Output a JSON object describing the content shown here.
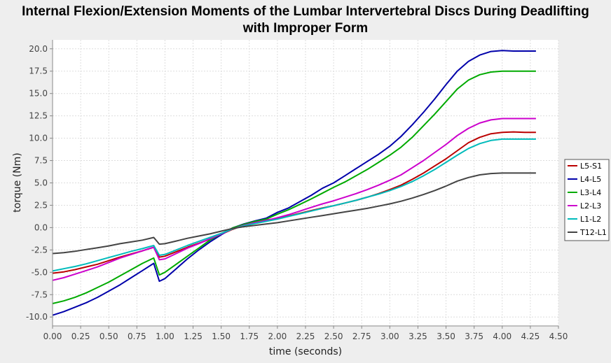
{
  "chart_data": {
    "type": "line",
    "title_line1": "Internal Flexion/Extension Moments of the Lumbar Intervertebral Discs  During Deadlifting",
    "title_line2": "with Improper Form",
    "xlabel": "time (seconds)",
    "ylabel": "torque (Nm)",
    "xlim": [
      0,
      4.5
    ],
    "ylim": [
      -11,
      21
    ],
    "x_ticks": [
      "0.00",
      "0.25",
      "0.50",
      "0.75",
      "1.00",
      "1.25",
      "1.50",
      "1.75",
      "2.00",
      "2.25",
      "2.50",
      "2.75",
      "3.00",
      "3.25",
      "3.50",
      "3.75",
      "4.00",
      "4.25",
      "4.50"
    ],
    "y_ticks": [
      "-10.0",
      "-7.5",
      "-5.0",
      "-2.5",
      "0.0",
      "2.5",
      "5.0",
      "7.5",
      "10.0",
      "12.5",
      "15.0",
      "17.5",
      "20.0"
    ],
    "grid": true,
    "legend_position": "right",
    "x": [
      0,
      0.1,
      0.2,
      0.3,
      0.4,
      0.5,
      0.6,
      0.7,
      0.8,
      0.9,
      0.95,
      1.0,
      1.1,
      1.2,
      1.3,
      1.4,
      1.5,
      1.6,
      1.7,
      1.8,
      1.9,
      2.0,
      2.1,
      2.2,
      2.3,
      2.4,
      2.5,
      2.6,
      2.7,
      2.8,
      2.9,
      3.0,
      3.1,
      3.2,
      3.3,
      3.4,
      3.5,
      3.6,
      3.7,
      3.8,
      3.9,
      4.0,
      4.1,
      4.2,
      4.3
    ],
    "series": [
      {
        "name": "L5-S1",
        "color": "#bb0000",
        "values": [
          -5.1,
          -4.95,
          -4.7,
          -4.4,
          -4.1,
          -3.7,
          -3.3,
          -2.95,
          -2.6,
          -2.2,
          -3.3,
          -3.2,
          -2.7,
          -2.2,
          -1.75,
          -1.3,
          -0.75,
          -0.2,
          0.25,
          0.6,
          0.85,
          1.0,
          1.3,
          1.6,
          1.9,
          2.2,
          2.45,
          2.75,
          3.05,
          3.4,
          3.8,
          4.25,
          4.75,
          5.4,
          6.1,
          6.9,
          7.7,
          8.6,
          9.5,
          10.1,
          10.5,
          10.65,
          10.7,
          10.65,
          10.65
        ]
      },
      {
        "name": "L4-L5",
        "color": "#0000aa",
        "values": [
          -9.8,
          -9.4,
          -8.9,
          -8.4,
          -7.8,
          -7.1,
          -6.4,
          -5.6,
          -4.8,
          -4.0,
          -6.0,
          -5.7,
          -4.6,
          -3.5,
          -2.5,
          -1.6,
          -0.8,
          -0.05,
          0.4,
          0.75,
          1.05,
          1.7,
          2.2,
          2.9,
          3.6,
          4.4,
          5.0,
          5.8,
          6.6,
          7.4,
          8.2,
          9.1,
          10.2,
          11.5,
          12.9,
          14.4,
          16.0,
          17.5,
          18.6,
          19.3,
          19.7,
          19.8,
          19.75,
          19.75,
          19.75
        ]
      },
      {
        "name": "L3-L4",
        "color": "#00aa00",
        "values": [
          -8.5,
          -8.2,
          -7.8,
          -7.3,
          -6.7,
          -6.1,
          -5.4,
          -4.7,
          -4.0,
          -3.4,
          -5.3,
          -5.0,
          -4.1,
          -3.2,
          -2.3,
          -1.4,
          -0.7,
          -0.05,
          0.35,
          0.7,
          0.95,
          1.5,
          2.0,
          2.6,
          3.2,
          3.85,
          4.5,
          5.1,
          5.8,
          6.5,
          7.3,
          8.1,
          9.0,
          10.1,
          11.4,
          12.7,
          14.1,
          15.5,
          16.5,
          17.1,
          17.4,
          17.5,
          17.5,
          17.5,
          17.5
        ]
      },
      {
        "name": "L2-L3",
        "color": "#cc00cc",
        "values": [
          -5.9,
          -5.6,
          -5.2,
          -4.8,
          -4.4,
          -3.9,
          -3.4,
          -3.0,
          -2.6,
          -2.2,
          -3.6,
          -3.5,
          -2.9,
          -2.3,
          -1.8,
          -1.25,
          -0.7,
          -0.15,
          0.25,
          0.55,
          0.8,
          1.1,
          1.45,
          1.85,
          2.25,
          2.65,
          3.0,
          3.4,
          3.8,
          4.25,
          4.75,
          5.3,
          5.9,
          6.7,
          7.5,
          8.4,
          9.3,
          10.3,
          11.1,
          11.7,
          12.05,
          12.2,
          12.2,
          12.2,
          12.2
        ]
      },
      {
        "name": "L1-L2",
        "color": "#00bbbb",
        "values": [
          -4.85,
          -4.6,
          -4.35,
          -4.05,
          -3.7,
          -3.35,
          -3.0,
          -2.65,
          -2.35,
          -2.0,
          -3.1,
          -3.0,
          -2.5,
          -2.0,
          -1.55,
          -1.1,
          -0.65,
          -0.15,
          0.2,
          0.45,
          0.7,
          0.95,
          1.25,
          1.55,
          1.85,
          2.15,
          2.45,
          2.75,
          3.05,
          3.4,
          3.75,
          4.15,
          4.6,
          5.15,
          5.8,
          6.5,
          7.3,
          8.1,
          8.85,
          9.4,
          9.75,
          9.9,
          9.9,
          9.9,
          9.9
        ]
      },
      {
        "name": "T12-L1",
        "color": "#444444",
        "values": [
          -2.9,
          -2.8,
          -2.65,
          -2.45,
          -2.25,
          -2.05,
          -1.8,
          -1.6,
          -1.4,
          -1.1,
          -1.85,
          -1.8,
          -1.5,
          -1.2,
          -0.95,
          -0.7,
          -0.4,
          -0.1,
          0.1,
          0.25,
          0.4,
          0.55,
          0.75,
          0.95,
          1.15,
          1.35,
          1.55,
          1.75,
          1.95,
          2.15,
          2.4,
          2.65,
          2.95,
          3.3,
          3.7,
          4.15,
          4.65,
          5.2,
          5.6,
          5.9,
          6.05,
          6.1,
          6.1,
          6.1,
          6.1
        ]
      }
    ]
  }
}
